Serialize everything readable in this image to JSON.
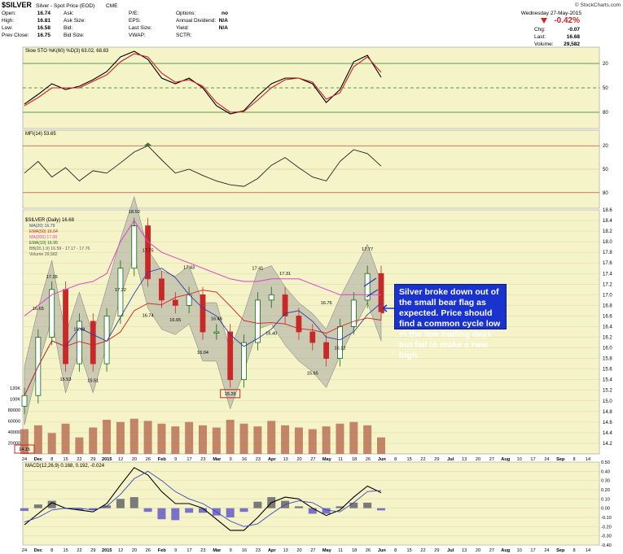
{
  "header": {
    "symbol": "$SILVER",
    "name": "Silver - Spot Price (EOD)",
    "exchange": "CME",
    "brand": "© StockCharts.com",
    "date": "Wednesday  27-May-2015",
    "quote_rows": [
      [
        [
          "Open:",
          "16.74"
        ],
        [
          "Ask:",
          ""
        ],
        [
          "P/E:",
          ""
        ],
        [
          "Options:",
          "no"
        ]
      ],
      [
        [
          "High:",
          "16.81"
        ],
        [
          "Ask Size:",
          ""
        ],
        [
          "EPS:",
          ""
        ],
        [
          "Annual Dividend:",
          "N/A"
        ]
      ],
      [
        [
          "Low:",
          "16.58"
        ],
        [
          "Bid:",
          ""
        ],
        [
          "Last Size:",
          ""
        ],
        [
          "Yield:",
          "N/A"
        ]
      ],
      [
        [
          "Prev Close:",
          "16.75"
        ],
        [
          "Bid Size:",
          ""
        ],
        [
          "VWAP:",
          ""
        ],
        [
          "SCTR:",
          ""
        ]
      ]
    ],
    "change_pct": "-0.42%",
    "chg_label": "Chg:",
    "chg": "-0.07",
    "last_label": "Last:",
    "last": "16.68",
    "volume_label": "Volume:",
    "volume": "29,582"
  },
  "callout": {
    "text": "Silver broke down out of the small bear flag as expected. Price should find a common cycle low in the few trading days but fail to make a new high."
  },
  "colors": {
    "panel_bg": "#f5f4c8",
    "grid": "#d4d29a",
    "up": "#0f6b0f",
    "down": "#c82828",
    "ma20": "#2f3fa8",
    "ema50": "#d02020",
    "ma200": "#e040c8",
    "band": "#9a9a9a",
    "volume": "#b06048",
    "callout": "#1a33cc"
  },
  "chart_data": [
    {
      "type": "line",
      "panel": "stochastic",
      "title": "Slow STO %K(60) %D(3) 63.02, 68.83",
      "ylim": [
        0,
        100
      ],
      "yticks": [
        20,
        50,
        80
      ],
      "grid": true,
      "x": [
        "Nov 24",
        "Dec 1",
        "Dec 8",
        "Dec 15",
        "Dec 22",
        "Dec 29",
        "Jan 5",
        "Jan 12",
        "Jan 20",
        "Jan 26",
        "Feb 2",
        "Feb 9",
        "Feb 17",
        "Feb 23",
        "Mar 2",
        "Mar 9",
        "Mar 16",
        "Mar 23",
        "Mar 30",
        "Apr 6",
        "Apr 13",
        "Apr 20",
        "Apr 27",
        "May 4",
        "May 11",
        "May 18",
        "May 26"
      ],
      "series": [
        {
          "name": "%K",
          "values": [
            30,
            42,
            55,
            48,
            52,
            60,
            70,
            88,
            95,
            85,
            62,
            55,
            62,
            50,
            28,
            18,
            22,
            40,
            55,
            62,
            62,
            55,
            32,
            48,
            82,
            90,
            63
          ]
        },
        {
          "name": "%D",
          "values": [
            28,
            38,
            50,
            50,
            50,
            58,
            66,
            82,
            92,
            88,
            68,
            57,
            60,
            52,
            32,
            20,
            21,
            35,
            50,
            60,
            62,
            57,
            36,
            44,
            76,
            88,
            69
          ]
        }
      ]
    },
    {
      "type": "line",
      "panel": "mfi",
      "title": "MFI(14) 53.65",
      "ylim": [
        0,
        100
      ],
      "yticks": [
        20,
        50,
        80
      ],
      "grid": true,
      "series": [
        {
          "name": "MFI",
          "values": [
            45,
            60,
            40,
            52,
            35,
            48,
            45,
            58,
            72,
            80,
            62,
            45,
            50,
            42,
            35,
            30,
            28,
            38,
            55,
            65,
            52,
            40,
            35,
            60,
            75,
            70,
            54
          ]
        }
      ]
    },
    {
      "type": "candlestick",
      "panel": "price",
      "title": "$SILVER (Daily) 16.68",
      "legend": [
        "MA(20) 16.79",
        "EMA(50) 16.64",
        "MA(200) 17.00",
        "EMA(10) 16.95",
        "BB(20,1.9) 16.59 - 17.17 - 17.76",
        "Volume 29,582"
      ],
      "ylim": [
        14.0,
        18.6
      ],
      "yticks": [
        14.2,
        14.4,
        14.6,
        14.8,
        15.0,
        15.2,
        15.4,
        15.6,
        15.8,
        16.0,
        16.2,
        16.4,
        16.6,
        16.8,
        17.0,
        17.2,
        17.4,
        17.6,
        17.8,
        18.0,
        18.2,
        18.4,
        18.6
      ],
      "annotations": [
        {
          "text": "14.15",
          "boxed": true
        },
        {
          "text": "16.65"
        },
        {
          "text": "17.25"
        },
        {
          "text": "15.53"
        },
        {
          "text": "16.48"
        },
        {
          "text": "15.51"
        },
        {
          "text": "17.22"
        },
        {
          "text": "18.50"
        },
        {
          "text": "16.74"
        },
        {
          "text": "17.75"
        },
        {
          "text": "16.65"
        },
        {
          "text": "17.43"
        },
        {
          "text": "16.04"
        },
        {
          "text": "16.46"
        },
        {
          "text": "15.26",
          "boxed": true
        },
        {
          "text": "17.41"
        },
        {
          "text": "16.40"
        },
        {
          "text": "17.31"
        },
        {
          "text": "15.65"
        },
        {
          "text": "16.76"
        },
        {
          "text": "16.12"
        },
        {
          "text": "17.77"
        }
      ],
      "series": [
        {
          "name": "Close",
          "values": [
            15.1,
            16.2,
            17.1,
            15.7,
            16.5,
            15.7,
            16.6,
            17.5,
            18.3,
            17.3,
            16.9,
            16.8,
            17.0,
            16.3,
            16.3,
            15.4,
            16.1,
            16.9,
            17.0,
            16.6,
            16.3,
            16.1,
            15.8,
            16.4,
            16.9,
            17.4,
            16.68
          ]
        },
        {
          "name": "MA(200)",
          "values": [
            16.6,
            16.8,
            17.0,
            17.1,
            17.2,
            17.25,
            17.4,
            18.0,
            18.4,
            18.0,
            17.8,
            17.7,
            17.6,
            17.5,
            17.4,
            17.3,
            17.25,
            17.25,
            17.3,
            17.3,
            17.3,
            17.2,
            17.1,
            17.0,
            17.0,
            17.0,
            17.0
          ]
        }
      ]
    },
    {
      "type": "bar",
      "panel": "volume",
      "ylim": [
        0,
        130000
      ],
      "yticks": [
        20000,
        40000,
        60000,
        80000,
        100000,
        120000
      ],
      "ytick_labels": [
        "20000",
        "40000",
        "60000",
        "80000",
        "100K",
        "120K"
      ],
      "values": [
        45000,
        52000,
        38000,
        55000,
        30000,
        48000,
        62000,
        58000,
        64000,
        60000,
        55000,
        50000,
        58000,
        52000,
        48000,
        62000,
        55000,
        50000,
        60000,
        52000,
        48000,
        45000,
        50000,
        55000,
        58000,
        52000,
        30000
      ]
    },
    {
      "type": "area",
      "panel": "macd",
      "title": "MACD(12,26,9) 0.168, 0.192, -0.024",
      "ylim": [
        -0.4,
        0.5
      ],
      "yticks": [
        -0.4,
        -0.3,
        -0.2,
        -0.1,
        0.0,
        0.1,
        0.2,
        0.3,
        0.4,
        0.5
      ],
      "ytick_labels": [
        "-0.40",
        "-0.30",
        "-0.20",
        "-0.10",
        "0.00",
        "0.10",
        "0.20",
        "0.30",
        "0.40",
        "0.50"
      ],
      "series": [
        {
          "name": "MACD",
          "values": [
            -0.18,
            -0.06,
            0.06,
            0.0,
            -0.02,
            -0.04,
            0.05,
            0.25,
            0.44,
            0.36,
            0.18,
            0.05,
            0.05,
            0.0,
            -0.12,
            -0.24,
            -0.24,
            -0.1,
            0.06,
            0.12,
            0.1,
            0.0,
            -0.08,
            -0.02,
            0.12,
            0.24,
            0.168
          ]
        },
        {
          "name": "Signal",
          "values": [
            -0.15,
            -0.1,
            -0.02,
            0.0,
            0.0,
            -0.02,
            0.02,
            0.15,
            0.32,
            0.4,
            0.3,
            0.18,
            0.1,
            0.05,
            -0.04,
            -0.14,
            -0.2,
            -0.17,
            -0.06,
            0.04,
            0.08,
            0.06,
            -0.02,
            -0.04,
            0.06,
            0.18,
            0.192
          ]
        },
        {
          "name": "Histogram",
          "values": [
            -0.03,
            0.04,
            0.08,
            0.0,
            -0.02,
            -0.02,
            0.03,
            0.1,
            0.12,
            -0.04,
            -0.12,
            -0.13,
            -0.05,
            -0.05,
            -0.08,
            -0.1,
            -0.04,
            0.07,
            0.12,
            0.08,
            0.02,
            -0.06,
            -0.06,
            0.02,
            0.06,
            0.06,
            -0.024
          ]
        }
      ]
    }
  ],
  "x_axis": {
    "labels_top": [
      "24",
      "Dec",
      "8",
      "15",
      "22",
      "29",
      "2015",
      "12",
      "20",
      "26",
      "Feb",
      "9",
      "17",
      "23",
      "Mar",
      "9",
      "16",
      "23",
      "Apr",
      "13",
      "20",
      "27",
      "May",
      "11",
      "18",
      "26",
      "Jun",
      "8",
      "15",
      "22",
      "29",
      "Jul",
      "13",
      "20",
      "27",
      "Aug",
      "10",
      "17",
      "24",
      "Sep",
      "8",
      "14"
    ],
    "labels_bottom": [
      "24",
      "Dec",
      "8",
      "15",
      "22",
      "29",
      "2015",
      "12",
      "20",
      "26",
      "Feb",
      "9",
      "17",
      "23",
      "Mar",
      "9",
      "16",
      "23",
      "Apr",
      "13",
      "20",
      "27",
      "May",
      "11",
      "18",
      "26",
      "Jun",
      "8",
      "15",
      "22",
      "29",
      "Jul",
      "13",
      "20",
      "27",
      "Aug",
      "10",
      "17",
      "24",
      "Sep",
      "8",
      "14"
    ]
  },
  "stoch_ticks": [
    "80",
    "50",
    "20"
  ],
  "mfi_ticks": [
    "80",
    "50",
    "20"
  ]
}
